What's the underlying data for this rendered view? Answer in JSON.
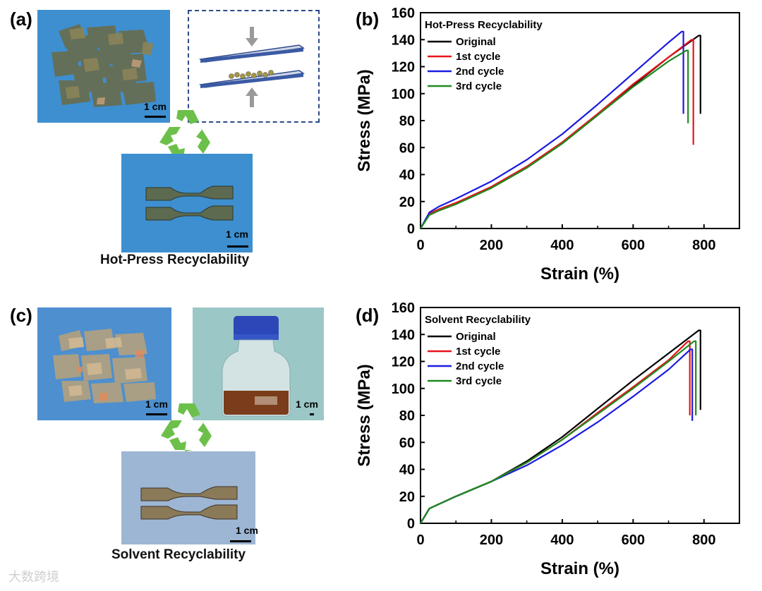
{
  "panels": {
    "a": {
      "label": "(a)",
      "scale_top": "1 cm",
      "scale_bottom": "1 cm",
      "caption": "Hot-Press Recyclability"
    },
    "c": {
      "label": "(c)",
      "scale_left": "1 cm",
      "scale_right": "1 cm",
      "scale_bottom": "1 cm",
      "caption": "Solvent Recyclability"
    },
    "b": {
      "label": "(b)"
    },
    "d": {
      "label": "(d)"
    }
  },
  "colors": {
    "photo_blue": "#3d8fd0",
    "recycle_green": "#6cc04a",
    "original": "#000000",
    "cycle1": "#e8141c",
    "cycle2": "#1b1be0",
    "cycle3": "#1e8a1e"
  },
  "chart_data": [
    {
      "id": "b",
      "type": "line",
      "title": "Hot-Press Recyclability",
      "xlabel": "Strain (%)",
      "ylabel": "Stress (MPa)",
      "xlim": [
        0,
        900
      ],
      "ylim": [
        0,
        160
      ],
      "xticks": [
        "0",
        "200",
        "400",
        "600",
        "800"
      ],
      "yticks": [
        "0",
        "20",
        "40",
        "60",
        "80",
        "100",
        "120",
        "140",
        "160"
      ],
      "legend_position": "top-left",
      "grid": false,
      "series": [
        {
          "name": "Original",
          "color": "#000000",
          "break_strain": 785,
          "break_stress": 143,
          "end_stress": 85,
          "x": [
            0,
            25,
            50,
            100,
            200,
            300,
            400,
            500,
            600,
            700,
            785
          ],
          "y": [
            0,
            11,
            14,
            19,
            30,
            45,
            63,
            84,
            106,
            127,
            143
          ]
        },
        {
          "name": "1st cycle",
          "color": "#e8141c",
          "break_strain": 765,
          "break_stress": 140,
          "end_stress": 62,
          "x": [
            0,
            25,
            50,
            100,
            200,
            300,
            400,
            500,
            600,
            700,
            765
          ],
          "y": [
            0,
            11,
            14,
            19,
            31,
            46,
            64,
            85,
            107,
            127,
            140
          ]
        },
        {
          "name": "2nd cycle",
          "color": "#1b1be0",
          "break_strain": 737,
          "break_stress": 146,
          "end_stress": 85,
          "x": [
            0,
            25,
            50,
            100,
            200,
            300,
            400,
            500,
            600,
            700,
            737
          ],
          "y": [
            0,
            12,
            16,
            22,
            35,
            51,
            70,
            92,
            115,
            138,
            146
          ]
        },
        {
          "name": "3rd cycle",
          "color": "#1e8a1e",
          "break_strain": 750,
          "break_stress": 132,
          "end_stress": 78,
          "x": [
            0,
            25,
            50,
            100,
            200,
            300,
            400,
            500,
            600,
            700,
            750
          ],
          "y": [
            0,
            10,
            13,
            18,
            30,
            45,
            63,
            84,
            105,
            124,
            132
          ]
        }
      ]
    },
    {
      "id": "d",
      "type": "line",
      "title": "Solvent Recyclability",
      "xlabel": "Strain (%)",
      "ylabel": "Stress (MPa)",
      "xlim": [
        0,
        900
      ],
      "ylim": [
        0,
        160
      ],
      "xticks": [
        "0",
        "200",
        "400",
        "600",
        "800"
      ],
      "yticks": [
        "0",
        "20",
        "40",
        "60",
        "80",
        "100",
        "120",
        "140",
        "160"
      ],
      "legend_position": "top-left",
      "grid": false,
      "series": [
        {
          "name": "Original",
          "color": "#000000",
          "break_strain": 785,
          "break_stress": 143,
          "end_stress": 84,
          "x": [
            0,
            25,
            50,
            100,
            200,
            300,
            400,
            500,
            600,
            700,
            785
          ],
          "y": [
            0,
            11,
            14,
            20,
            31,
            46,
            64,
            85,
            106,
            126,
            143
          ]
        },
        {
          "name": "1st cycle",
          "color": "#e8141c",
          "break_strain": 755,
          "break_stress": 135,
          "end_stress": 80,
          "x": [
            0,
            25,
            50,
            100,
            200,
            300,
            400,
            500,
            600,
            700,
            755
          ],
          "y": [
            0,
            11,
            14,
            20,
            31,
            45,
            62,
            82,
            101,
            121,
            135
          ]
        },
        {
          "name": "2nd cycle",
          "color": "#1b1be0",
          "break_strain": 762,
          "break_stress": 129,
          "end_stress": 76,
          "x": [
            0,
            25,
            50,
            100,
            200,
            300,
            400,
            500,
            600,
            700,
            762
          ],
          "y": [
            0,
            11,
            14,
            20,
            31,
            43,
            58,
            75,
            94,
            114,
            129
          ]
        },
        {
          "name": "3rd cycle",
          "color": "#1e8a1e",
          "break_strain": 772,
          "break_stress": 135,
          "end_stress": 80,
          "x": [
            0,
            25,
            50,
            100,
            200,
            300,
            400,
            500,
            600,
            700,
            772
          ],
          "y": [
            0,
            11,
            14,
            20,
            31,
            45,
            62,
            81,
            100,
            120,
            135
          ]
        }
      ]
    }
  ],
  "watermark": "大数跨境"
}
